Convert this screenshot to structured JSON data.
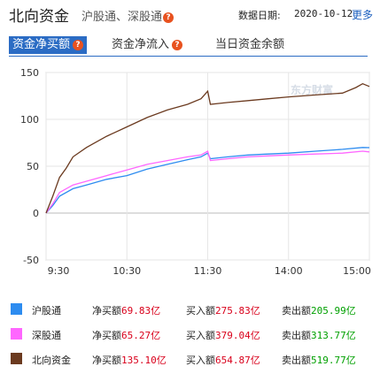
{
  "header": {
    "title": "北向资金",
    "subtitle": "沪股通、深股通",
    "help_glyph": "?",
    "date_label": "数据日期:",
    "date_value": "2020-10-12",
    "more": "更多"
  },
  "tabs": [
    {
      "label": "资金净买额",
      "active": true
    },
    {
      "label": "资金净流入",
      "active": false
    },
    {
      "label": "当日资金余额",
      "active": false
    }
  ],
  "colors": {
    "accent": "#2b6cc4",
    "shgt": "#2d8cf0",
    "szgt": "#ff66ff",
    "north": "#6b3a1f",
    "buy_red": "#d9001b",
    "sell_green": "#00a000"
  },
  "chart_data": {
    "type": "line",
    "x_ticks": [
      "9:30",
      "10:30",
      "11:30",
      "14:00",
      "15:00"
    ],
    "ylim": [
      -50,
      150
    ],
    "y_ticks": [
      -50,
      0,
      50,
      100,
      150
    ],
    "grid": true,
    "watermark": "东方财富",
    "series": [
      {
        "name": "沪股通",
        "color": "#2d8cf0",
        "x": [
          0,
          5,
          10,
          20,
          30,
          45,
          60,
          75,
          90,
          105,
          115,
          120,
          122,
          135,
          150,
          165,
          180,
          200,
          220,
          235,
          240
        ],
        "values": [
          0,
          8,
          18,
          26,
          30,
          36,
          40,
          47,
          52,
          57,
          60,
          64,
          58,
          60,
          62,
          63,
          64,
          66,
          68,
          70,
          69.83
        ]
      },
      {
        "name": "深股通",
        "color": "#ff66ff",
        "x": [
          0,
          5,
          10,
          20,
          30,
          45,
          60,
          75,
          90,
          105,
          115,
          120,
          122,
          135,
          150,
          165,
          180,
          200,
          220,
          235,
          240
        ],
        "values": [
          0,
          10,
          22,
          30,
          34,
          40,
          46,
          52,
          56,
          60,
          62,
          66,
          56,
          58,
          60,
          61,
          62,
          63,
          64,
          66,
          65.27
        ]
      },
      {
        "name": "北向资金",
        "color": "#6b3a1f",
        "x": [
          0,
          5,
          10,
          15,
          20,
          30,
          45,
          60,
          75,
          90,
          105,
          115,
          120,
          122,
          135,
          150,
          165,
          180,
          200,
          220,
          230,
          235,
          240
        ],
        "values": [
          0,
          18,
          38,
          48,
          60,
          70,
          82,
          92,
          102,
          110,
          116,
          122,
          130,
          116,
          118,
          120,
          122,
          124,
          126,
          128,
          134,
          138,
          135.1
        ]
      }
    ]
  },
  "legend": [
    {
      "name": "沪股通",
      "color": "#2d8cf0",
      "net_label": "净买额",
      "net": "69.83",
      "buy_label": "买入额",
      "buy": "275.83",
      "sell_label": "卖出额",
      "sell": "205.99",
      "unit": "亿"
    },
    {
      "name": "深股通",
      "color": "#ff66ff",
      "net_label": "净买额",
      "net": "65.27",
      "buy_label": "买入额",
      "buy": "379.04",
      "sell_label": "卖出额",
      "sell": "313.77",
      "unit": "亿"
    },
    {
      "name": "北向资金",
      "color": "#6b3a1f",
      "net_label": "净买额",
      "net": "135.10",
      "buy_label": "买入额",
      "buy": "654.87",
      "sell_label": "卖出额",
      "sell": "519.77",
      "unit": "亿"
    }
  ]
}
